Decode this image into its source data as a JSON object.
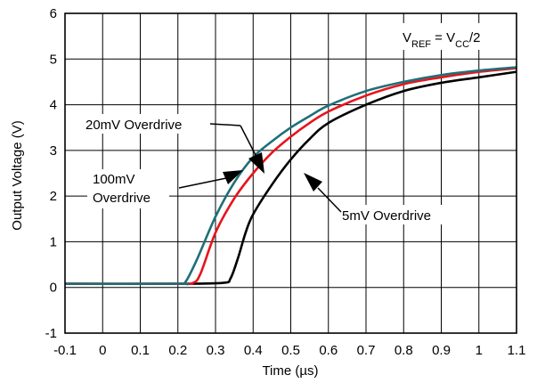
{
  "chart_data": {
    "type": "line",
    "xlabel": "Time (µs)",
    "ylabel": "Output Voltage (V)",
    "xlim": [
      -0.1,
      1.1
    ],
    "ylim": [
      -1,
      6
    ],
    "x_ticks": [
      "-0.1",
      "0",
      "0.1",
      "0.2",
      "0.3",
      "0.4",
      "0.5",
      "0.6",
      "0.7",
      "0.8",
      "0.9",
      "1",
      "1.1"
    ],
    "y_ticks": [
      "-1",
      "0",
      "1",
      "2",
      "3",
      "4",
      "5",
      "6"
    ],
    "grid": true,
    "legend": "none",
    "condition": {
      "v": "V",
      "ref": "REF",
      "eq": " = V",
      "cc": "CC",
      "tail": "/2"
    },
    "series": [
      {
        "name": "5mV Overdrive",
        "color": "#000000",
        "x": [
          -0.1,
          0.2,
          0.32,
          0.34,
          0.36,
          0.38,
          0.4,
          0.45,
          0.5,
          0.55,
          0.6,
          0.7,
          0.8,
          0.9,
          1.0,
          1.1
        ],
        "y": [
          0.08,
          0.08,
          0.1,
          0.2,
          0.65,
          1.2,
          1.6,
          2.25,
          2.8,
          3.25,
          3.6,
          4.0,
          4.3,
          4.48,
          4.6,
          4.72
        ]
      },
      {
        "name": "20mV Overdrive",
        "color": "#1f6f78",
        "x": [
          -0.1,
          0.2,
          0.22,
          0.25,
          0.3,
          0.35,
          0.4,
          0.45,
          0.5,
          0.55,
          0.6,
          0.7,
          0.8,
          0.9,
          1.0,
          1.1
        ],
        "y": [
          0.08,
          0.08,
          0.12,
          0.6,
          1.55,
          2.3,
          2.85,
          3.2,
          3.5,
          3.75,
          3.98,
          4.3,
          4.5,
          4.65,
          4.75,
          4.82
        ]
      },
      {
        "name": "100mV Overdrive",
        "color": "#e8141b",
        "x": [
          -0.1,
          0.2,
          0.24,
          0.26,
          0.3,
          0.35,
          0.4,
          0.45,
          0.5,
          0.55,
          0.6,
          0.7,
          0.8,
          0.9,
          1.0,
          1.1
        ],
        "y": [
          0.08,
          0.08,
          0.1,
          0.3,
          1.2,
          1.95,
          2.5,
          2.95,
          3.3,
          3.6,
          3.85,
          4.2,
          4.45,
          4.6,
          4.72,
          4.8
        ]
      }
    ],
    "annotations": {
      "a20": "20mV Overdrive",
      "a100_line1": "100mV",
      "a100_line2": "Overdrive",
      "a5": "5mV Overdrive"
    }
  }
}
